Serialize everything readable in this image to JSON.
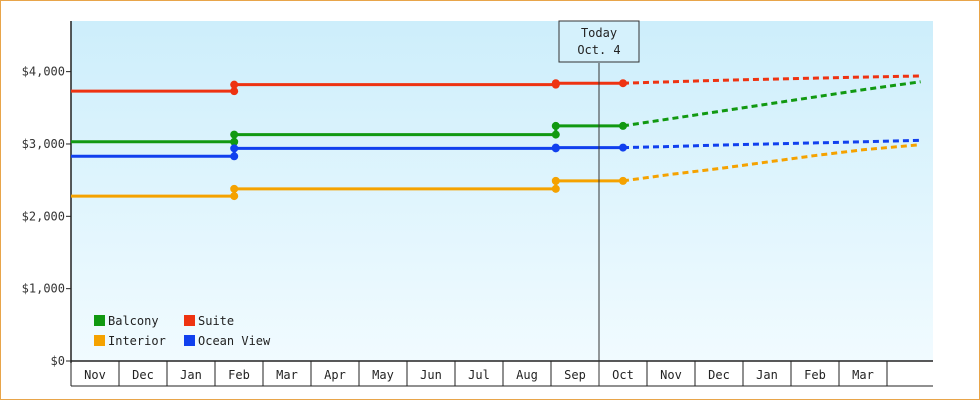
{
  "chart_data": {
    "type": "line",
    "title": "",
    "xlabel": "",
    "ylabel": "",
    "x": [
      "Nov",
      "Dec",
      "Jan",
      "Feb",
      "Mar",
      "Apr",
      "May",
      "Jun",
      "Jul",
      "Aug",
      "Sep",
      "Oct",
      "Nov",
      "Dec",
      "Jan",
      "Feb",
      "Mar"
    ],
    "ylim": [
      0,
      4700
    ],
    "yticks": [
      0,
      1000,
      2000,
      3000,
      4000
    ],
    "ytick_labels": [
      "$0",
      "$1,000",
      "$2,000",
      "$3,000",
      "$4,000"
    ],
    "grid": false,
    "legend_placement": "bottom-left",
    "today_marker": {
      "label_line1": "Today",
      "label_line2": "Oct. 4",
      "x": 11.0
    },
    "series": [
      {
        "name": "Balcony",
        "color": "#119911",
        "history": [
          [
            -0.5,
            3030
          ],
          [
            2.9,
            3030
          ],
          [
            2.9,
            3130
          ],
          [
            9.6,
            3130
          ],
          [
            9.6,
            3250
          ],
          [
            11.0,
            3250
          ]
        ],
        "forecast": [
          [
            11.0,
            3250
          ],
          [
            12.0,
            3350
          ],
          [
            13.0,
            3450
          ],
          [
            14.0,
            3550
          ],
          [
            15.0,
            3650
          ],
          [
            16.0,
            3750
          ],
          [
            17.2,
            3860
          ]
        ]
      },
      {
        "name": "Suite",
        "color": "#ee3311",
        "history": [
          [
            -0.5,
            3730
          ],
          [
            2.9,
            3730
          ],
          [
            2.9,
            3820
          ],
          [
            9.6,
            3820
          ],
          [
            9.6,
            3840
          ],
          [
            11.0,
            3840
          ]
        ],
        "forecast": [
          [
            11.0,
            3840
          ],
          [
            12.0,
            3860
          ],
          [
            13.0,
            3880
          ],
          [
            14.0,
            3895
          ],
          [
            15.0,
            3910
          ],
          [
            16.0,
            3925
          ],
          [
            17.2,
            3940
          ]
        ]
      },
      {
        "name": "Interior",
        "color": "#f5a200",
        "history": [
          [
            -0.5,
            2280
          ],
          [
            2.9,
            2280
          ],
          [
            2.9,
            2380
          ],
          [
            9.6,
            2380
          ],
          [
            9.6,
            2490
          ],
          [
            11.0,
            2490
          ]
        ],
        "forecast": [
          [
            11.0,
            2490
          ],
          [
            12.0,
            2580
          ],
          [
            13.0,
            2660
          ],
          [
            14.0,
            2750
          ],
          [
            15.0,
            2840
          ],
          [
            16.0,
            2920
          ],
          [
            17.2,
            2990
          ]
        ]
      },
      {
        "name": "Ocean View",
        "color": "#1140ee",
        "history": [
          [
            -0.5,
            2830
          ],
          [
            2.9,
            2830
          ],
          [
            2.9,
            2940
          ],
          [
            9.6,
            2940
          ],
          [
            9.6,
            2950
          ],
          [
            11.0,
            2950
          ]
        ],
        "forecast": [
          [
            11.0,
            2950
          ],
          [
            12.0,
            2965
          ],
          [
            13.0,
            2985
          ],
          [
            14.0,
            3000
          ],
          [
            15.0,
            3015
          ],
          [
            16.0,
            3030
          ],
          [
            17.2,
            3050
          ]
        ]
      }
    ],
    "legend": [
      {
        "name": "Balcony",
        "color": "#119911"
      },
      {
        "name": "Suite",
        "color": "#ee3311"
      },
      {
        "name": "Interior",
        "color": "#f5a200"
      },
      {
        "name": "Ocean View",
        "color": "#1140ee"
      }
    ]
  }
}
